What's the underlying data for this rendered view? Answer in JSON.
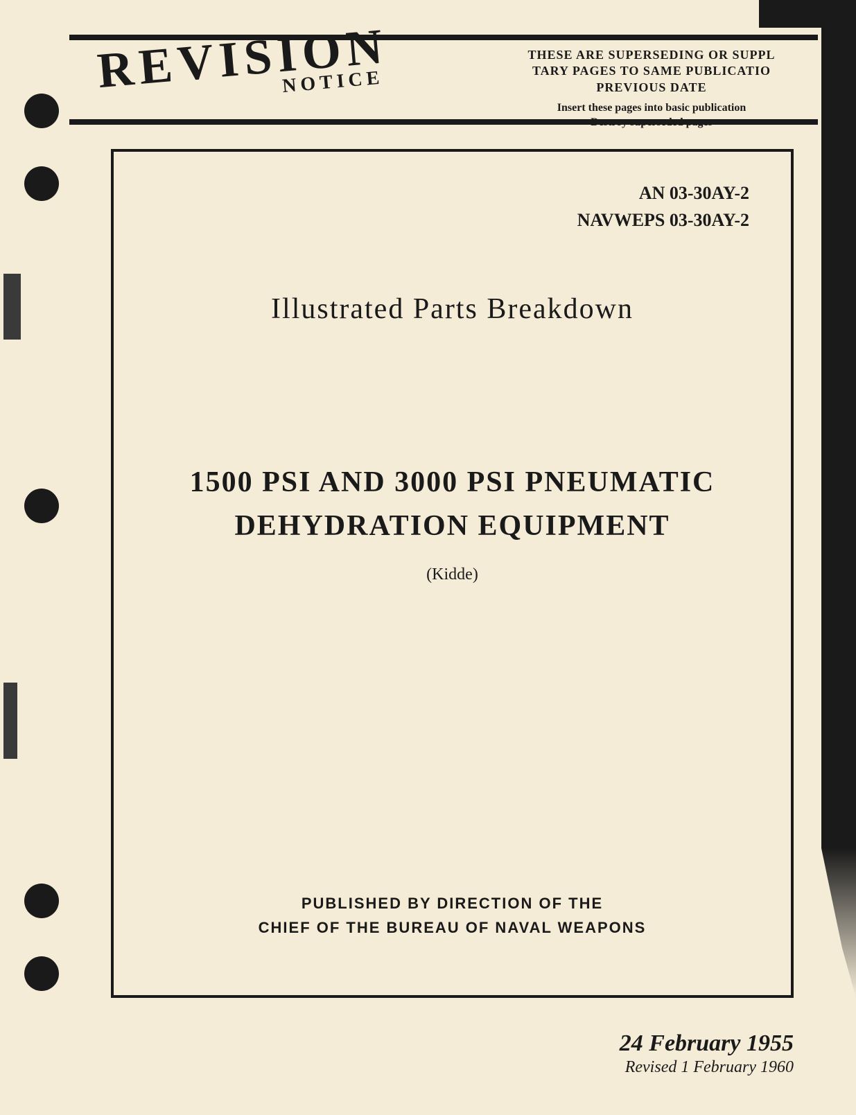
{
  "header": {
    "revision_main": "REVISION",
    "revision_notice": "NOTICE",
    "supersede_line1": "THESE ARE SUPERSEDING OR SUPPL",
    "supersede_line2": "TARY PAGES TO SAME PUBLICATIO",
    "supersede_line3": "PREVIOUS DATE",
    "insert_line1": "Insert these pages into basic publication",
    "insert_line2": "Destroy superseded pages"
  },
  "doc_numbers": {
    "line1": "AN 03-30AY-2",
    "line2": "NAVWEPS 03-30AY-2"
  },
  "section_title": "Illustrated  Parts  Breakdown",
  "main_title": {
    "line1": "1500  PSI  AND  3000  PSI  PNEUMATIC",
    "line2": "DEHYDRATION  EQUIPMENT"
  },
  "manufacturer": "(Kidde)",
  "publisher": {
    "line1": "PUBLISHED BY DIRECTION OF THE",
    "line2": "CHIEF OF THE BUREAU OF NAVAL WEAPONS"
  },
  "dates": {
    "main": "24 February 1955",
    "revised": "Revised 1 February 1960"
  },
  "colors": {
    "background": "#f5ecd8",
    "text": "#1a1a1a",
    "border": "#1a1a1a"
  },
  "typography": {
    "title_fontsize": 42,
    "doc_number_fontsize": 26,
    "date_fontsize": 34,
    "body_fontsize": 22
  }
}
